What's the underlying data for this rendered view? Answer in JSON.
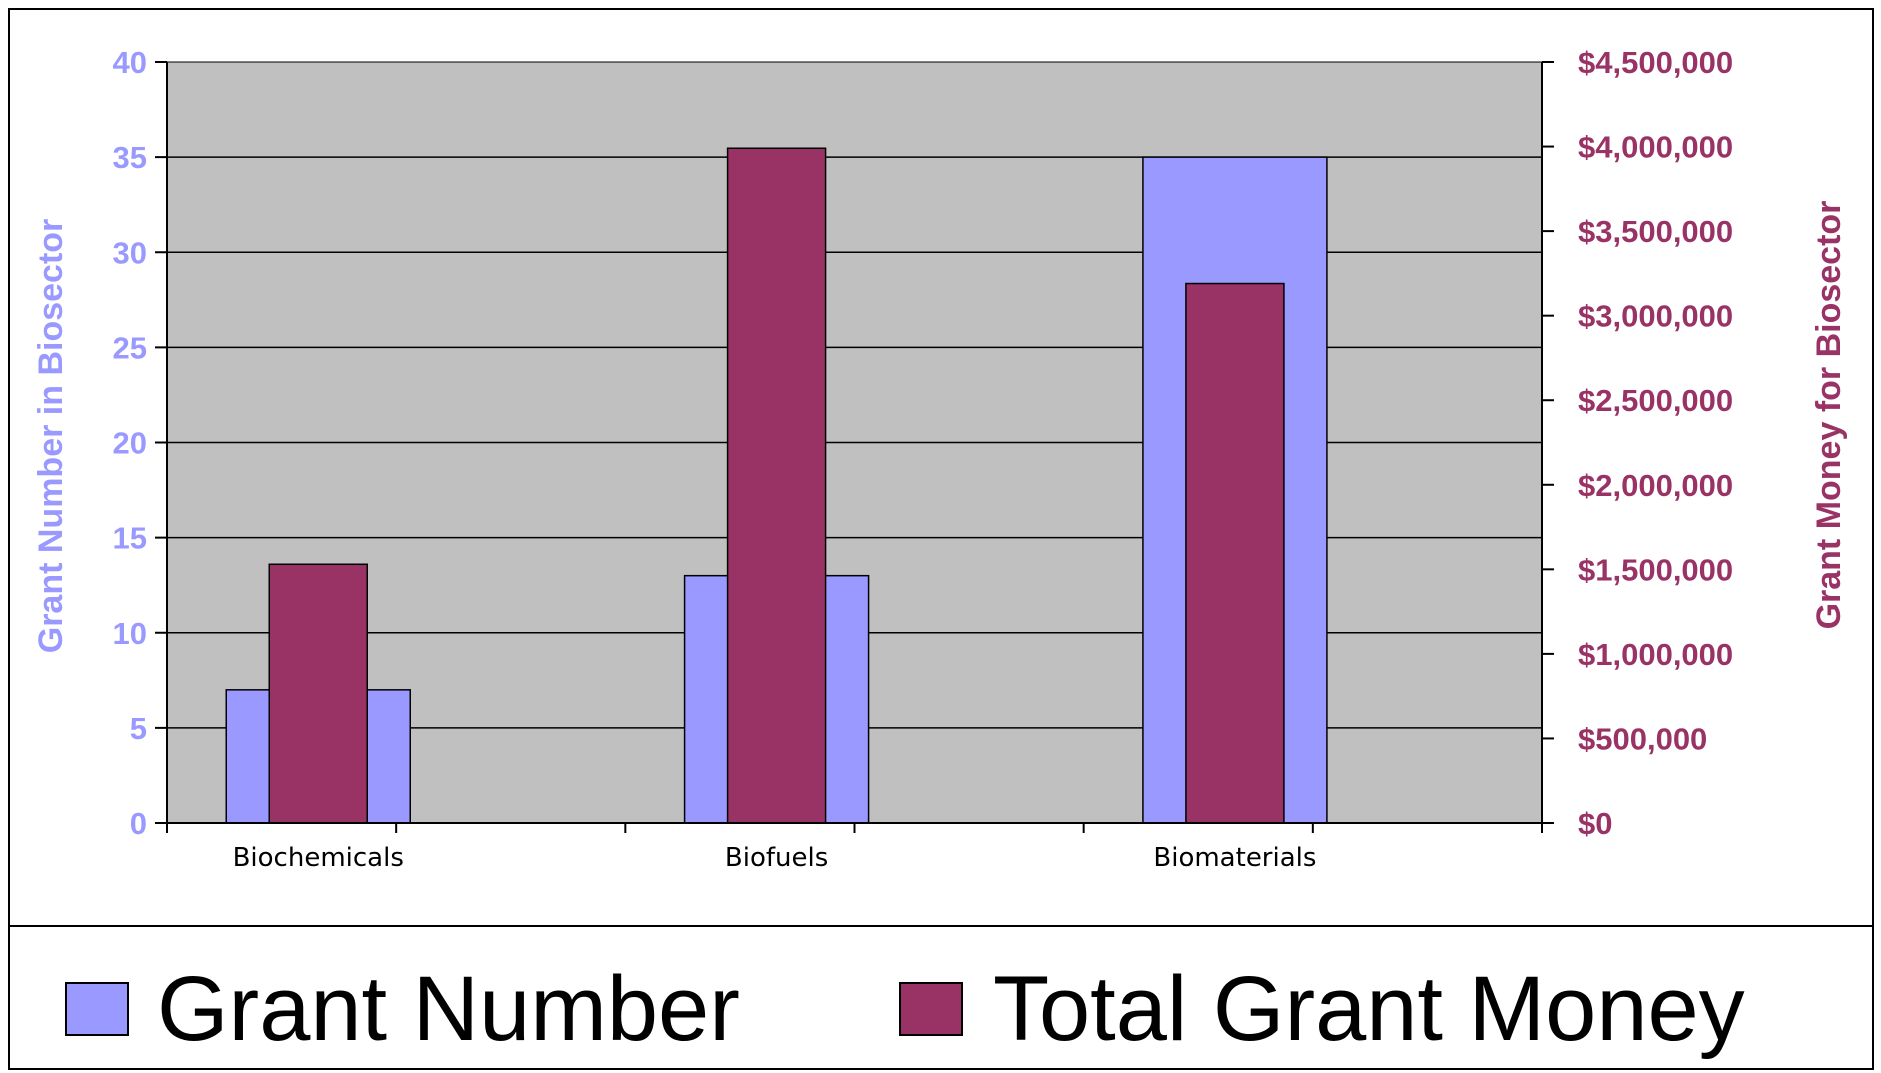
{
  "chart_data": {
    "type": "bar",
    "categories": [
      "Biochemicals",
      "Biofuels",
      "Biomaterials"
    ],
    "series": [
      {
        "name": "Grant Number",
        "axis": "left",
        "color": "#9999ff",
        "values": [
          7,
          13,
          35
        ]
      },
      {
        "name": "Total Grant Money",
        "axis": "right",
        "color": "#993366",
        "values": [
          1530000,
          3990000,
          3190000
        ]
      }
    ],
    "ylabel_left": "Grant Number in Biosector",
    "ylabel_right": "Grant Money for Biosector",
    "ylim_left": [
      0,
      40
    ],
    "ylim_right": [
      0,
      4500000
    ],
    "yticks_left": [
      "0",
      "5",
      "10",
      "15",
      "20",
      "25",
      "30",
      "35",
      "40"
    ],
    "yticks_right": [
      "$0",
      "$500,000",
      "$1,000,000",
      "$1,500,000",
      "$2,000,000",
      "$2,500,000",
      "$3,000,000",
      "$3,500,000",
      "$4,000,000",
      "$4,500,000"
    ],
    "grid": true,
    "plot_background": "#c0c0c0",
    "legend_position": "bottom"
  },
  "legend": {
    "items": [
      "Grant Number",
      "Total Grant Money"
    ]
  }
}
